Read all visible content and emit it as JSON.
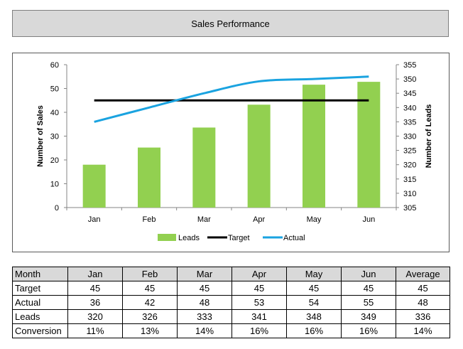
{
  "header": {
    "title": "Sales Performance"
  },
  "chart_data": {
    "type": "bar+line",
    "categories": [
      "Jan",
      "Feb",
      "Mar",
      "Apr",
      "May",
      "Jun"
    ],
    "series": [
      {
        "name": "Leads",
        "kind": "bar",
        "axis": "right",
        "color": "#92d050",
        "values": [
          320,
          326,
          333,
          341,
          348,
          349
        ]
      },
      {
        "name": "Target",
        "kind": "line",
        "axis": "left",
        "color": "#000000",
        "values": [
          45,
          45,
          45,
          45,
          45,
          45
        ]
      },
      {
        "name": "Actual",
        "kind": "line",
        "axis": "left",
        "color": "#1aa3e0",
        "values": [
          36,
          42,
          48,
          53,
          54,
          55
        ]
      }
    ],
    "y_left": {
      "label": "Number of Sales",
      "min": 0,
      "max": 60,
      "ticks": [
        0,
        10,
        20,
        30,
        40,
        50,
        60
      ]
    },
    "y_right": {
      "label": "Number of Leads",
      "min": 305,
      "max": 355,
      "ticks": [
        305,
        310,
        315,
        320,
        325,
        330,
        335,
        340,
        345,
        350,
        355
      ]
    },
    "legend": {
      "placement": "bottom",
      "entries": [
        "Leads",
        "Target",
        "Actual"
      ]
    }
  },
  "table": {
    "headers": [
      "Month",
      "Jan",
      "Feb",
      "Mar",
      "Apr",
      "May",
      "Jun",
      "Average"
    ],
    "rows": [
      {
        "label": "Target",
        "values": [
          "45",
          "45",
          "45",
          "45",
          "45",
          "45",
          "45"
        ]
      },
      {
        "label": "Actual",
        "values": [
          "36",
          "42",
          "48",
          "53",
          "54",
          "55",
          "48"
        ]
      },
      {
        "label": "Leads",
        "values": [
          "320",
          "326",
          "333",
          "341",
          "348",
          "349",
          "336"
        ]
      },
      {
        "label": "Conversion",
        "values": [
          "11%",
          "13%",
          "14%",
          "16%",
          "16%",
          "16%",
          "14%"
        ]
      }
    ]
  }
}
